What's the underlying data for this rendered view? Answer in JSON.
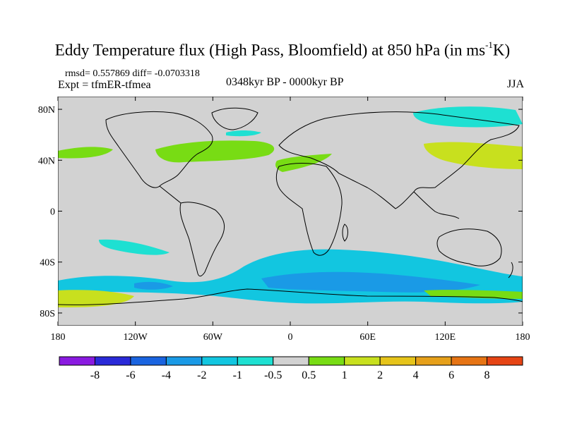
{
  "title": {
    "main": "Eddy Temperature flux (High Pass, Bloomfield) at 850 hPa (in ms",
    "sup": "-1",
    "unit_end": "K)"
  },
  "stats_line": "rmsd= 0.557869 diff= -0.0703318",
  "expt_line": "Expt = tfmER-tfmea",
  "period": "0348kyr BP - 0000kyr BP",
  "season": "JJA",
  "lat_labels": [
    "80N",
    "40N",
    "0",
    "40S",
    "80S"
  ],
  "lon_labels": [
    "180",
    "120W",
    "60W",
    "0",
    "60E",
    "120E",
    "180"
  ],
  "colorbar": {
    "colors": [
      "#8a1ae0",
      "#2a2ad8",
      "#1a64e0",
      "#1a9ae6",
      "#12c6e0",
      "#1ee0d2",
      "#d2d2d2",
      "#78dc14",
      "#c8e01e",
      "#e6c41a",
      "#e6a01a",
      "#e67414",
      "#e64414"
    ],
    "labels": [
      "-8",
      "-6",
      "-4",
      "-2",
      "-1",
      "-0.5",
      "0.5",
      "1",
      "2",
      "4",
      "6",
      "8"
    ]
  },
  "palette": {
    "background_field": "#d2d2d2",
    "light_cyan": "#1ee0d2",
    "cyan": "#12c6e0",
    "light_blue": "#1a9ae6",
    "green": "#78dc14",
    "yellow_green": "#c8e01e",
    "orange": "#e6c41a"
  }
}
